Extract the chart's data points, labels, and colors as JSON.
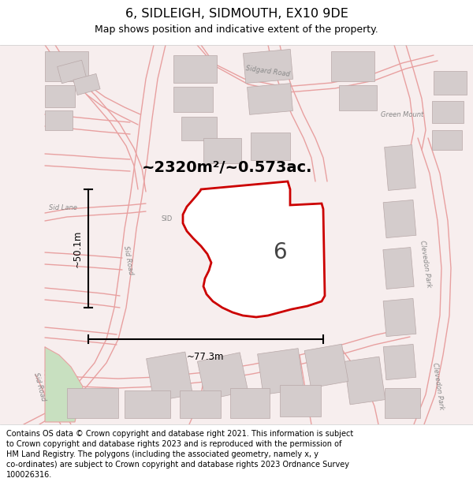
{
  "title": "6, SIDLEIGH, SIDMOUTH, EX10 9DE",
  "subtitle": "Map shows position and indicative extent of the property.",
  "footer_lines": [
    "Contains OS data © Crown copyright and database right 2021. This information is subject",
    "to Crown copyright and database rights 2023 and is reproduced with the permission of",
    "HM Land Registry. The polygons (including the associated geometry, namely x, y",
    "co-ordinates) are subject to Crown copyright and database rights 2023 Ordnance Survey",
    "100026316."
  ],
  "area_label": "~2320m²/~0.573ac.",
  "width_label": "~77.3m",
  "height_label": "~50.1m",
  "number_label": "6",
  "bg_color": "#ffffff",
  "map_bg": "#f7eeee",
  "road_line_color": "#e8a0a0",
  "building_color": "#d4cccc",
  "building_edge_color": "#b8a8a8",
  "property_outline_color": "#cc0000",
  "title_fontsize": 11.5,
  "subtitle_fontsize": 9,
  "footer_fontsize": 7,
  "area_fontsize": 14,
  "number_fontsize": 20,
  "dim_fontsize": 8.5,
  "road_label_fontsize": 6
}
